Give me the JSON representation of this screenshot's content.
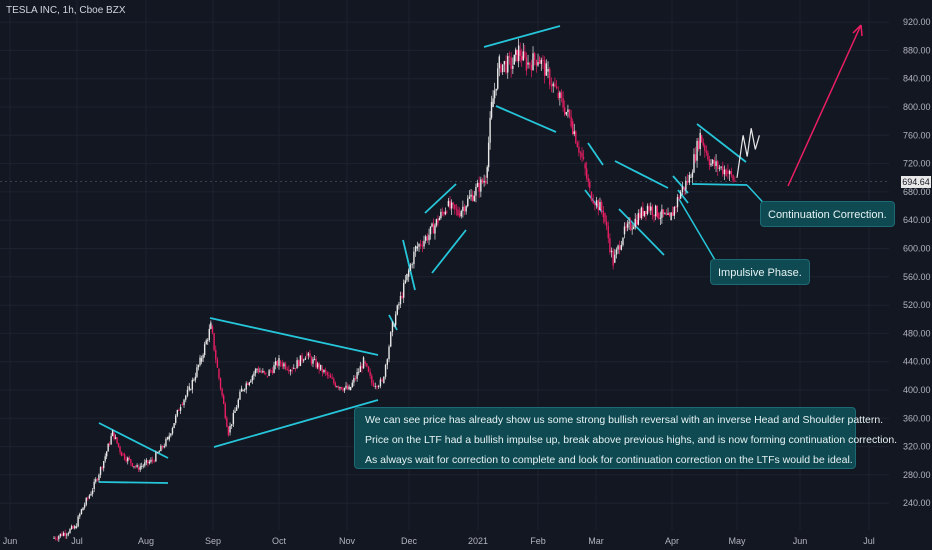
{
  "header": {
    "title": "TESLA INC, 1h, Cboe BZX"
  },
  "current_price": "694.64",
  "colors": {
    "background": "#131722",
    "up": "#e8e8e8",
    "down": "#e91e63",
    "pattern": "#26c6da",
    "arrow": "#e91e63",
    "note_bg": "#0f4a52"
  },
  "notes": {
    "main": [
      "We can see price has already show us some strong bullish reversal with an inverse Head and Shoulder pattern.",
      "Price on the LTF had a bullish impulse up, break above previous highs, and is now forming continuation correction.",
      "As always wait for correction to complete and look for continuation correction on the LTFs would be ideal."
    ],
    "continuation": "Continuation Correction.",
    "impulsive": "Impulsive Phase."
  },
  "chart_data": {
    "type": "line",
    "title": "TESLA INC, 1h, Cboe BZX",
    "x_ticks": [
      "Jun",
      "Jul",
      "Aug",
      "Sep",
      "Oct",
      "Nov",
      "Dec",
      "2021",
      "Feb",
      "Mar",
      "Apr",
      "May",
      "Jun",
      "Jul"
    ],
    "y_ticks": [
      240,
      280,
      320,
      360,
      400,
      440,
      480,
      520,
      560,
      600,
      640,
      680,
      720,
      760,
      800,
      840,
      880,
      920
    ],
    "ylim": [
      212,
      943
    ],
    "last_price": 694.64,
    "series": [
      {
        "x": [
          "2020-06-20",
          "2020-06-30",
          "2020-07-03",
          "2020-07-08",
          "2020-07-13",
          "2020-07-17",
          "2020-07-21",
          "2020-07-28",
          "2020-08-04",
          "2020-08-11",
          "2020-08-17",
          "2020-08-21",
          "2020-08-26",
          "2020-08-31",
          "2020-09-03",
          "2020-09-08",
          "2020-09-14",
          "2020-09-21",
          "2020-09-25",
          "2020-10-01",
          "2020-10-07",
          "2020-10-13",
          "2020-10-20",
          "2020-10-26",
          "2020-11-02",
          "2020-11-09",
          "2020-11-13",
          "2020-11-18",
          "2020-11-23",
          "2020-11-30",
          "2020-12-04",
          "2020-12-10",
          "2020-12-14",
          "2020-12-18",
          "2020-12-23",
          "2021-01-05",
          "2021-01-08",
          "2021-01-12",
          "2021-01-19",
          "2021-01-22",
          "2021-01-26",
          "2021-02-01",
          "2021-02-05",
          "2021-02-10",
          "2021-02-17",
          "2021-02-23",
          "2021-02-26",
          "2021-03-04",
          "2021-03-08",
          "2021-03-12",
          "2021-03-17",
          "2021-03-22",
          "2021-03-26",
          "2021-03-31",
          "2021-04-05",
          "2021-04-09",
          "2021-04-14",
          "2021-04-19",
          "2021-04-26",
          "2021-04-30"
        ],
        "values": [
          190,
          205,
          230,
          260,
          300,
          340,
          310,
          290,
          300,
          330,
          380,
          400,
          440,
          490,
          430,
          340,
          400,
          430,
          420,
          440,
          430,
          450,
          430,
          410,
          400,
          440,
          410,
          410,
          490,
          560,
          600,
          620,
          640,
          660,
          650,
          700,
          800,
          860,
          860,
          880,
          860,
          870,
          850,
          820,
          780,
          720,
          680,
          650,
          580,
          620,
          640,
          660,
          650,
          640,
          680,
          700,
          760,
          720,
          710,
          694.64
        ]
      },
      {
        "name": "",
        "x": [
          "2021-05-01",
          "2021-05-04",
          "2021-05-06",
          "2021-05-08",
          "2021-05-10",
          "2021-05-12"
        ],
        "values": [
          700,
          760,
          730,
          770,
          740,
          760
        ]
      }
    ]
  }
}
